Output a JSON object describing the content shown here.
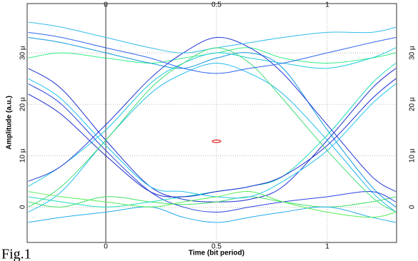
{
  "chart_data": {
    "type": "eye",
    "xlabel": "Time (bit period)",
    "ylabel": "Amplitude (a.u.)",
    "caption": "Fig.1",
    "x": [
      -0.35,
      -0.2,
      0,
      0.2,
      0.35,
      0.5,
      0.65,
      0.8,
      1,
      1.2,
      1.31
    ],
    "xlim": [
      -0.355,
      1.313
    ],
    "ylim": [
      -6.9,
      39.6
    ],
    "xticks": [
      0,
      0.5,
      1
    ],
    "yticks": [
      0,
      {
        "value": 10,
        "label": "10 µ"
      },
      {
        "value": 20,
        "label": "20 µ"
      },
      {
        "value": 30,
        "label": "30 µ"
      }
    ],
    "grid": true,
    "series": [
      {
        "color": "#1f2fd0",
        "values": [
          27,
          23,
          13,
          4,
          1.5,
          1,
          1.5,
          4,
          13,
          23,
          27
        ]
      },
      {
        "color": "#22bbee",
        "values": [
          -1,
          3,
          13,
          22,
          26,
          28,
          26,
          22,
          13,
          3,
          -1
        ]
      },
      {
        "color": "#33ee88",
        "values": [
          29,
          30,
          29,
          28,
          29,
          30,
          31,
          29,
          28,
          29,
          30
        ]
      },
      {
        "color": "#44e066",
        "values": [
          1,
          0,
          2,
          1,
          0.5,
          1,
          2,
          1,
          0,
          1,
          2
        ]
      },
      {
        "color": "#1199dd",
        "values": [
          33,
          32,
          30,
          28,
          27,
          29,
          30,
          27,
          15,
          4,
          0
        ]
      },
      {
        "color": "#22ccdd",
        "values": [
          4,
          8,
          15,
          24,
          28,
          30,
          29,
          28,
          27,
          29,
          31
        ]
      },
      {
        "color": "#2a44e0",
        "values": [
          24,
          20,
          11,
          3,
          0,
          -1,
          0,
          1,
          2,
          3,
          1
        ]
      },
      {
        "color": "#22ddbb",
        "values": [
          2,
          1,
          0,
          1,
          2,
          3,
          4,
          6,
          14,
          24,
          28
        ]
      },
      {
        "color": "#1a2acc",
        "values": [
          22,
          18,
          10,
          3,
          2,
          3,
          4,
          6,
          12,
          21,
          25
        ]
      },
      {
        "color": "#2436d8",
        "values": [
          5,
          8,
          16,
          25,
          30,
          33,
          31,
          26,
          16,
          6,
          3
        ]
      },
      {
        "color": "#33bbee",
        "values": [
          36,
          35,
          33,
          31,
          30,
          31,
          32,
          33,
          34,
          34,
          35
        ]
      },
      {
        "color": "#22aaee",
        "values": [
          -3,
          -2,
          -1,
          0,
          -2,
          -3,
          -2,
          -1,
          0,
          -2,
          -3
        ]
      },
      {
        "color": "#44dd77",
        "values": [
          0,
          4,
          13,
          23,
          28,
          31,
          28,
          21,
          11,
          2,
          -1
        ]
      },
      {
        "color": "#22c4ee",
        "values": [
          25,
          21,
          12,
          4,
          3,
          2,
          2,
          5,
          11,
          20,
          24
        ]
      },
      {
        "color": "#3366ee",
        "values": [
          34,
          33,
          31,
          29,
          27,
          26,
          27,
          28,
          30,
          32,
          33
        ]
      },
      {
        "color": "#55ee55",
        "values": [
          3,
          2,
          1,
          0,
          1,
          2,
          3,
          1,
          -1,
          -2,
          -1
        ]
      }
    ],
    "marker": {
      "x": 0.5,
      "y": 12.8,
      "color": "#dd2222"
    }
  }
}
